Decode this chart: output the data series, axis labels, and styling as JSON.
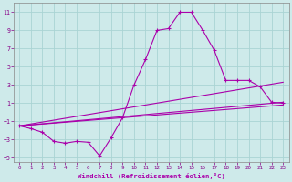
{
  "xlabel": "Windchill (Refroidissement éolien,°C)",
  "background_color": "#ceeaea",
  "grid_color": "#aad4d4",
  "line_color": "#aa00aa",
  "xlim": [
    -0.5,
    23.5
  ],
  "ylim": [
    -5.5,
    12.0
  ],
  "yticks": [
    -5,
    -3,
    -1,
    1,
    3,
    5,
    7,
    9,
    11
  ],
  "xticks": [
    0,
    1,
    2,
    3,
    4,
    5,
    6,
    7,
    8,
    9,
    10,
    11,
    12,
    13,
    14,
    15,
    16,
    17,
    18,
    19,
    20,
    21,
    22,
    23
  ],
  "main_x": [
    0,
    1,
    2,
    3,
    4,
    5,
    6,
    7,
    8,
    9,
    10,
    11,
    12,
    13,
    14,
    15,
    16,
    17,
    18,
    19,
    20,
    21,
    22,
    23
  ],
  "main_y": [
    -1.5,
    -1.8,
    -2.2,
    -3.2,
    -3.4,
    -3.2,
    -3.3,
    -4.8,
    -2.8,
    -0.6,
    3.0,
    5.8,
    9.0,
    9.2,
    11.0,
    11.0,
    9.0,
    6.8,
    3.5,
    3.5,
    3.5,
    2.8,
    1.1,
    1.0
  ],
  "env_x0": 0,
  "env_y0": -1.5,
  "env1_x1": 23,
  "env1_y1": 3.3,
  "env2_x1": 23,
  "env2_y1": 1.1,
  "env3_x1": 23,
  "env3_y1": 0.8
}
